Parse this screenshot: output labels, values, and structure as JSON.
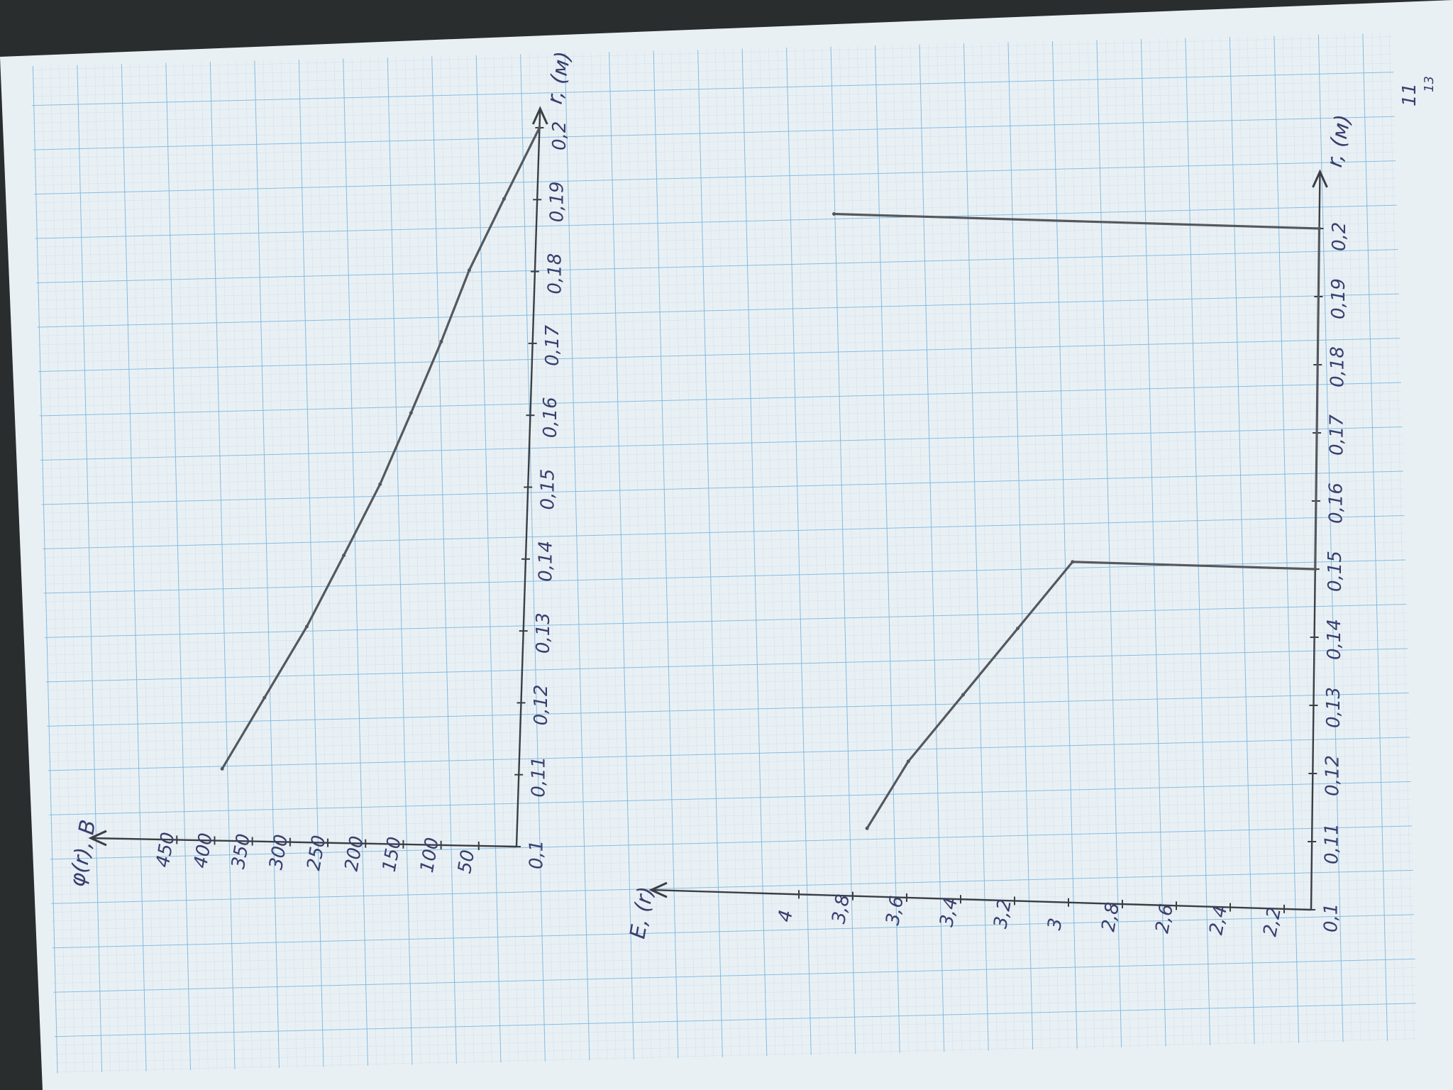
{
  "page_number": "11",
  "corner_mark": "13",
  "chart_data": [
    {
      "type": "line",
      "ylabel": "φ(r), В",
      "xlabel": "r, (м)",
      "x_ticks": [
        "0,1",
        "0,11",
        "0,12",
        "0,13",
        "0,14",
        "0,15",
        "0,16",
        "0,17",
        "0,18",
        "0,19",
        "0,2"
      ],
      "y_ticks": [
        "50",
        "100",
        "150",
        "200",
        "250",
        "300",
        "350",
        "400",
        "450"
      ],
      "xlim": [
        0.1,
        0.2
      ],
      "ylim": [
        0,
        470
      ],
      "series": [
        {
          "x": [
            0.11,
            0.12,
            0.13,
            0.14,
            0.15,
            0.16,
            0.17,
            0.18,
            0.19,
            0.2
          ],
          "values": [
            393,
            340,
            287,
            241,
            196,
            158,
            121,
            87,
            44,
            0
          ]
        }
      ],
      "grid": true,
      "line_color": "#55585c"
    },
    {
      "type": "line",
      "ylabel": "E, (r)",
      "xlabel": "r, (м)",
      "x_ticks": [
        "0,1",
        "0,11",
        "0,12",
        "0,13",
        "0,14",
        "0,15",
        "0,16",
        "0,17",
        "0,18",
        "0,19",
        "0,2"
      ],
      "y_ticks": [
        "2,2",
        "2,4",
        "2,6",
        "2,8",
        "3",
        "3,2",
        "3,4",
        "3,6",
        "3,8",
        "4"
      ],
      "xlim": [
        0.1,
        0.2
      ],
      "ylim": [
        2.1,
        4.1
      ],
      "series": [
        {
          "x": [
            0.11,
            0.12,
            0.13,
            0.14,
            0.15,
            0.15,
            0.2,
            0.2
          ],
          "values": [
            3.75,
            3.6,
            3.4,
            3.2,
            3.0,
            2.1,
            2.1,
            3.9
          ]
        }
      ],
      "grid": true,
      "line_color": "#55585c"
    }
  ],
  "colors": {
    "paper": "#eef3f6",
    "grid_minor": "#b8d6ea",
    "grid_major": "#6fb2de",
    "ink": "#3a3f6e",
    "pencil": "#55585c"
  }
}
